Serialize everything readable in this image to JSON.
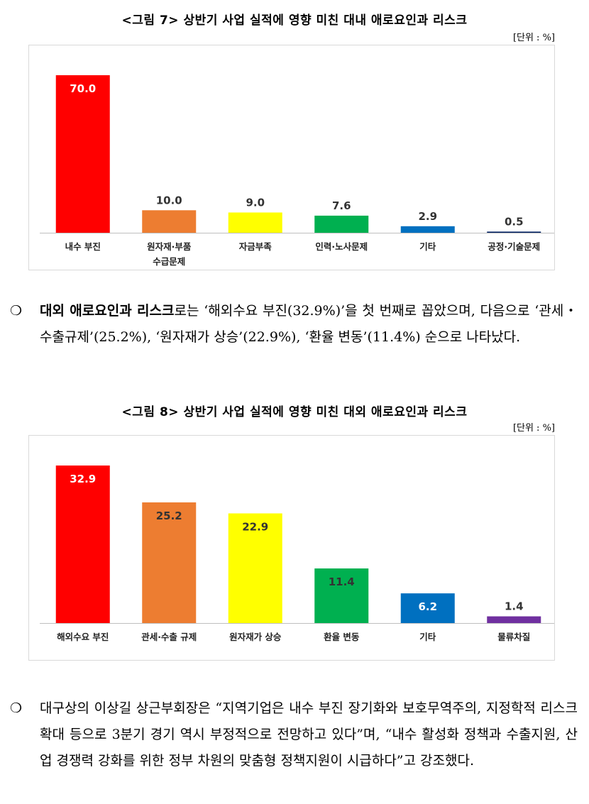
{
  "figure7": {
    "title": "<그림 7> 상반기 사업 실적에 영향 미친 대내 애로요인과 리스크",
    "unit": "[단위 : %]"
  },
  "paragraph1": {
    "bullet": "❍",
    "lead": "대외 애로요인과 리스크",
    "text": "로는 ‘해외수요 부진(32.9%)’을 첫 번째로 꼽았으며, 다음으로 ‘관세・수출규제’(25.2%), ‘원자재가 상승’(22.9%), ‘환율 변동’(11.4%) 순으로 나타났다."
  },
  "figure8": {
    "title": "<그림 8> 상반기 사업 실적에 영향 미친 대외 애로요인과 리스크",
    "unit": "[단위 : %]"
  },
  "paragraph2": {
    "bullet": "❍",
    "text": "대구상의 이상길 상근부회장은 “지역기업은 내수 부진 장기화와 보호무역주의, 지정학적 리스크 확대 등으로 3분기 경기 역시 부정적으로 전망하고 있다”며, “내수 활성화 정책과 수출지원, 산업 경쟁력 강화를 위한 정부 차원의 맞춤형 정책지원이 시급하다”고 강조했다."
  },
  "chart_data": [
    {
      "type": "bar",
      "title": "<그림 7> 상반기 사업 실적에 영향 미친 대내 애로요인과 리스크",
      "unit": "[단위 : %]",
      "categories": [
        [
          "내수 부진"
        ],
        [
          "원자재·부품",
          "수급문제"
        ],
        [
          "자금부족"
        ],
        [
          "인력·노사문제"
        ],
        [
          "기타"
        ],
        [
          "공정·기술문제"
        ]
      ],
      "values": [
        70.0,
        10.0,
        9.0,
        7.6,
        2.9,
        0.5
      ],
      "labels": [
        "70.0",
        "10.0",
        "9.0",
        "7.6",
        "2.9",
        "0.5"
      ],
      "colors": [
        "#ff0000",
        "#ed7d31",
        "#ffff00",
        "#00b050",
        "#0070c0",
        "#002060"
      ],
      "label_inside": [
        true,
        false,
        false,
        false,
        false,
        false
      ],
      "ylim": [
        0,
        70
      ],
      "grid": false
    },
    {
      "type": "bar",
      "title": "<그림 8> 상반기 사업 실적에 영향 미친 대외 애로요인과 리스크",
      "unit": "[단위 : %]",
      "categories": [
        [
          "해외수요 부진"
        ],
        [
          "관세·수출 규제"
        ],
        [
          "원자재가 상승"
        ],
        [
          "환율 변동"
        ],
        [
          "기타"
        ],
        [
          "물류차질"
        ]
      ],
      "values": [
        32.9,
        25.2,
        22.9,
        11.4,
        6.2,
        1.4
      ],
      "labels": [
        "32.9",
        "25.2",
        "22.9",
        "11.4",
        "6.2",
        "1.4"
      ],
      "colors": [
        "#ff0000",
        "#ed7d31",
        "#ffff00",
        "#00b050",
        "#0070c0",
        "#7030a0"
      ],
      "label_inside": [
        true,
        true,
        true,
        true,
        true,
        false
      ],
      "ylim": [
        0,
        32.9
      ],
      "grid": false
    }
  ]
}
